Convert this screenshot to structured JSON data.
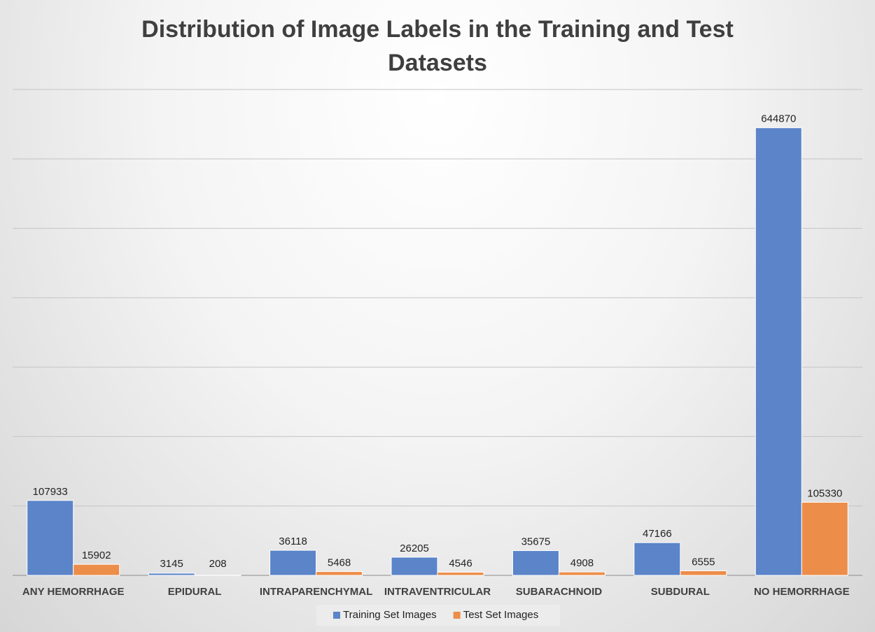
{
  "chart_data": {
    "type": "bar",
    "title": "Distribution of Image Labels in the Training and Test Datasets",
    "categories": [
      "ANY HEMORRHAGE",
      "EPIDURAL",
      "INTRAPARENCHYMAL",
      "INTRAVENTRICULAR",
      "SUBARACHNOID",
      "SUBDURAL",
      "NO HEMORRHAGE"
    ],
    "series": [
      {
        "name": "Training Set Images",
        "color": "#5b84c9",
        "values": [
          107933,
          3145,
          36118,
          26205,
          35675,
          47166,
          644870
        ]
      },
      {
        "name": "Test Set Images",
        "color": "#ec8d4a",
        "values": [
          15902,
          208,
          5468,
          4546,
          4908,
          6555,
          105330
        ]
      }
    ],
    "ylim": [
      0,
      700000
    ],
    "yticks": [
      0,
      100000,
      200000,
      300000,
      400000,
      500000,
      600000,
      700000
    ],
    "grid": true,
    "legend": "bottom"
  }
}
